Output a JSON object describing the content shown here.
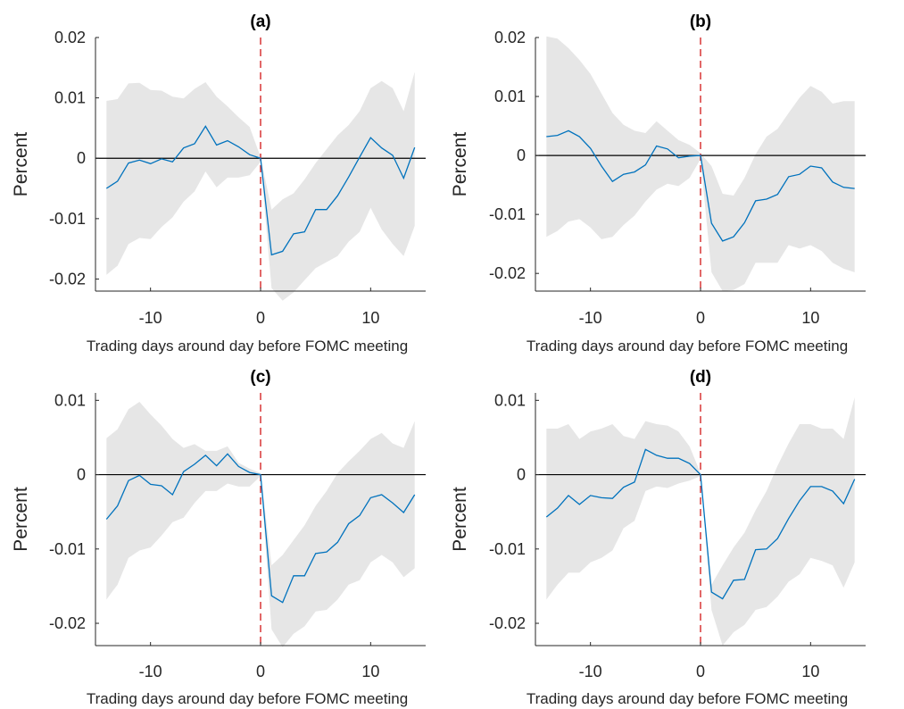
{
  "figure": {
    "colors": {
      "line": "#0072bd",
      "band": "#e6e6e6",
      "event_line": "#d62728",
      "zero_line": "#000000",
      "axis": "#262626"
    }
  },
  "chart_data": [
    {
      "type": "line",
      "title": "(a)",
      "xlabel": "Trading days around day before FOMC meeting",
      "ylabel": "Percent",
      "xlim": [
        -15,
        15
      ],
      "ylim": [
        -0.022,
        0.02
      ],
      "xticks": [
        -10,
        0,
        10
      ],
      "xtick_labels": [
        "-10",
        "0",
        "10"
      ],
      "yticks": [
        -0.02,
        -0.01,
        0,
        0.01,
        0.02
      ],
      "ytick_labels": [
        "-0.02",
        "-0.01",
        "0",
        "0.01",
        "0.02"
      ],
      "event_x": 0,
      "zero_line": 0,
      "x": [
        -14,
        -13,
        -12,
        -11,
        -10,
        -9,
        -8,
        -7,
        -6,
        -5,
        -4,
        -3,
        -2,
        -1,
        0,
        1,
        2,
        3,
        4,
        5,
        6,
        7,
        8,
        9,
        10,
        11,
        12,
        13,
        14
      ],
      "y": [
        -0.005,
        -0.0038,
        -0.0008,
        -0.0003,
        -0.0009,
        -0.0001,
        -0.0006,
        0.0017,
        0.0024,
        0.0053,
        0.0022,
        0.0029,
        0.0019,
        0.0006,
        0,
        -0.016,
        -0.0154,
        -0.0125,
        -0.0122,
        -0.0085,
        -0.0085,
        -0.0062,
        -0.0031,
        0.0002,
        0.0034,
        0.0017,
        0.0005,
        -0.0033,
        0.0018
      ],
      "band_upper": [
        0.0095,
        0.0098,
        0.0124,
        0.0125,
        0.0113,
        0.0112,
        0.0102,
        0.0099,
        0.0115,
        0.0126,
        0.0102,
        0.0086,
        0.0068,
        0.0052,
        0.0002,
        -0.0085,
        -0.0068,
        -0.0058,
        -0.0035,
        -0.0008,
        0.0015,
        0.0038,
        0.0055,
        0.0078,
        0.0116,
        0.0128,
        0.0116,
        0.0078,
        0.0143
      ],
      "band_lower": [
        -0.0193,
        -0.0178,
        -0.0142,
        -0.0132,
        -0.0134,
        -0.0114,
        -0.0098,
        -0.0072,
        -0.0055,
        -0.0022,
        -0.0048,
        -0.0032,
        -0.0032,
        -0.0028,
        -0.0006,
        -0.0215,
        -0.0236,
        -0.0222,
        -0.0202,
        -0.0182,
        -0.0172,
        -0.0162,
        -0.0138,
        -0.0122,
        -0.0082,
        -0.0118,
        -0.0142,
        -0.0162,
        -0.0112
      ]
    },
    {
      "type": "line",
      "title": "(b)",
      "xlabel": "Trading days around day before FOMC meeting",
      "ylabel": "Percent",
      "xlim": [
        -15,
        15
      ],
      "ylim": [
        -0.023,
        0.02
      ],
      "xticks": [
        -10,
        0,
        10
      ],
      "xtick_labels": [
        "-10",
        "0",
        "10"
      ],
      "yticks": [
        -0.02,
        -0.01,
        0,
        0.01,
        0.02
      ],
      "ytick_labels": [
        "-0.02",
        "-0.01",
        "0",
        "0.01",
        "0.02"
      ],
      "event_x": 0,
      "zero_line": 0,
      "x": [
        -14,
        -13,
        -12,
        -11,
        -10,
        -9,
        -8,
        -7,
        -6,
        -5,
        -4,
        -3,
        -2,
        -1,
        0,
        1,
        2,
        3,
        4,
        5,
        6,
        7,
        8,
        9,
        10,
        11,
        12,
        13,
        14
      ],
      "y": [
        0.0032,
        0.0034,
        0.0042,
        0.0032,
        0.0012,
        -0.0018,
        -0.0044,
        -0.0032,
        -0.0028,
        -0.0016,
        0.0016,
        0.0011,
        -0.0004,
        -0.0001,
        0,
        -0.0115,
        -0.0145,
        -0.0138,
        -0.0114,
        -0.0077,
        -0.0074,
        -0.0066,
        -0.0036,
        -0.0032,
        -0.0018,
        -0.0021,
        -0.0045,
        -0.0054,
        -0.0056
      ],
      "band_upper": [
        0.0202,
        0.0198,
        0.0182,
        0.0162,
        0.0138,
        0.0105,
        0.0072,
        0.0052,
        0.0042,
        0.0038,
        0.0058,
        0.0042,
        0.0026,
        0.0018,
        0.0004,
        -0.0018,
        -0.0065,
        -0.0068,
        -0.0038,
        0.0002,
        0.0032,
        0.0045,
        0.0072,
        0.0098,
        0.0118,
        0.0108,
        0.0088,
        0.0092,
        0.0092
      ],
      "band_lower": [
        -0.0138,
        -0.0128,
        -0.0112,
        -0.0108,
        -0.0122,
        -0.0142,
        -0.0138,
        -0.0118,
        -0.0102,
        -0.0078,
        -0.0058,
        -0.0048,
        -0.0052,
        -0.0038,
        -0.0006,
        -0.0198,
        -0.023,
        -0.0228,
        -0.0218,
        -0.0182,
        -0.0182,
        -0.0182,
        -0.0152,
        -0.0158,
        -0.0152,
        -0.0162,
        -0.0182,
        -0.0192,
        -0.0198
      ]
    },
    {
      "type": "line",
      "title": "(c)",
      "xlabel": "Trading days around day before FOMC meeting",
      "ylabel": "Percent",
      "xlim": [
        -15,
        15
      ],
      "ylim": [
        -0.023,
        0.011
      ],
      "xticks": [
        -10,
        0,
        10
      ],
      "xtick_labels": [
        "-10",
        "0",
        "10"
      ],
      "yticks": [
        -0.02,
        -0.01,
        0,
        0.01
      ],
      "ytick_labels": [
        "-0.02",
        "-0.01",
        "0",
        "0.01"
      ],
      "event_x": 0,
      "zero_line": 0,
      "x": [
        -14,
        -13,
        -12,
        -11,
        -10,
        -9,
        -8,
        -7,
        -6,
        -5,
        -4,
        -3,
        -2,
        -1,
        0,
        1,
        2,
        3,
        4,
        5,
        6,
        7,
        8,
        9,
        10,
        11,
        12,
        13,
        14
      ],
      "y": [
        -0.006,
        -0.0042,
        -0.0008,
        -0.0001,
        -0.0013,
        -0.0015,
        -0.0027,
        0.0004,
        0.0014,
        0.0026,
        0.0012,
        0.0028,
        0.0011,
        0.0003,
        0,
        -0.0163,
        -0.0172,
        -0.0136,
        -0.0136,
        -0.0106,
        -0.0104,
        -0.0091,
        -0.0066,
        -0.0055,
        -0.0031,
        -0.0027,
        -0.0038,
        -0.0051,
        -0.0027
      ],
      "band_upper": [
        0.0049,
        0.0061,
        0.0088,
        0.0098,
        0.0081,
        0.0066,
        0.0048,
        0.0036,
        0.0041,
        0.0032,
        0.0032,
        0.0038,
        0.0016,
        0.0008,
        0.0002,
        -0.0122,
        -0.0108,
        -0.0088,
        -0.0068,
        -0.0042,
        -0.0022,
        0.0002,
        0.0018,
        0.0032,
        0.0048,
        0.0056,
        0.0042,
        0.0036,
        0.0072
      ],
      "band_lower": [
        -0.0168,
        -0.0148,
        -0.0112,
        -0.0102,
        -0.0098,
        -0.0082,
        -0.0064,
        -0.0058,
        -0.0038,
        -0.0022,
        -0.0022,
        -0.0012,
        -0.0016,
        -0.0016,
        -0.0002,
        -0.0208,
        -0.0232,
        -0.0214,
        -0.0204,
        -0.0184,
        -0.0182,
        -0.0168,
        -0.0148,
        -0.0142,
        -0.0118,
        -0.0108,
        -0.0118,
        -0.0138,
        -0.0126
      ]
    },
    {
      "type": "line",
      "title": "(d)",
      "xlabel": "Trading days around day before FOMC meeting",
      "ylabel": "Percent",
      "xlim": [
        -15,
        15
      ],
      "ylim": [
        -0.023,
        0.011
      ],
      "xticks": [
        -10,
        0,
        10
      ],
      "xtick_labels": [
        "-10",
        "0",
        "10"
      ],
      "yticks": [
        -0.02,
        -0.01,
        0,
        0.01
      ],
      "ytick_labels": [
        "-0.02",
        "-0.01",
        "0",
        "0.01"
      ],
      "event_x": 0,
      "zero_line": 0,
      "x": [
        -14,
        -13,
        -12,
        -11,
        -10,
        -9,
        -8,
        -7,
        -6,
        -5,
        -4,
        -3,
        -2,
        -1,
        0,
        1,
        2,
        3,
        4,
        5,
        6,
        7,
        8,
        9,
        10,
        11,
        12,
        13,
        14
      ],
      "y": [
        -0.0057,
        -0.0045,
        -0.0028,
        -0.004,
        -0.0028,
        -0.0031,
        -0.0032,
        -0.0017,
        -0.001,
        0.0034,
        0.0026,
        0.0022,
        0.0022,
        0.0015,
        0,
        -0.0158,
        -0.0167,
        -0.0142,
        -0.0141,
        -0.0101,
        -0.01,
        -0.0086,
        -0.0059,
        -0.0035,
        -0.0016,
        -0.0016,
        -0.0022,
        -0.0039,
        -0.0006
      ],
      "band_upper": [
        0.0062,
        0.0062,
        0.0068,
        0.0048,
        0.0058,
        0.0062,
        0.0068,
        0.0052,
        0.0048,
        0.0072,
        0.0068,
        0.0066,
        0.0058,
        0.0038,
        0.0002,
        -0.0148,
        -0.0122,
        -0.0098,
        -0.0078,
        -0.0048,
        -0.0022,
        0.0012,
        0.0042,
        0.0068,
        0.0068,
        0.0062,
        0.0062,
        0.0048,
        0.0104
      ],
      "band_lower": [
        -0.0168,
        -0.0148,
        -0.0132,
        -0.0132,
        -0.0118,
        -0.0112,
        -0.0102,
        -0.0072,
        -0.0062,
        -0.0022,
        -0.0016,
        -0.0018,
        -0.0012,
        -0.0008,
        -0.0002,
        -0.0182,
        -0.023,
        -0.0212,
        -0.0202,
        -0.0182,
        -0.0178,
        -0.0164,
        -0.0144,
        -0.0134,
        -0.0112,
        -0.0116,
        -0.0122,
        -0.0152,
        -0.0118
      ]
    }
  ]
}
